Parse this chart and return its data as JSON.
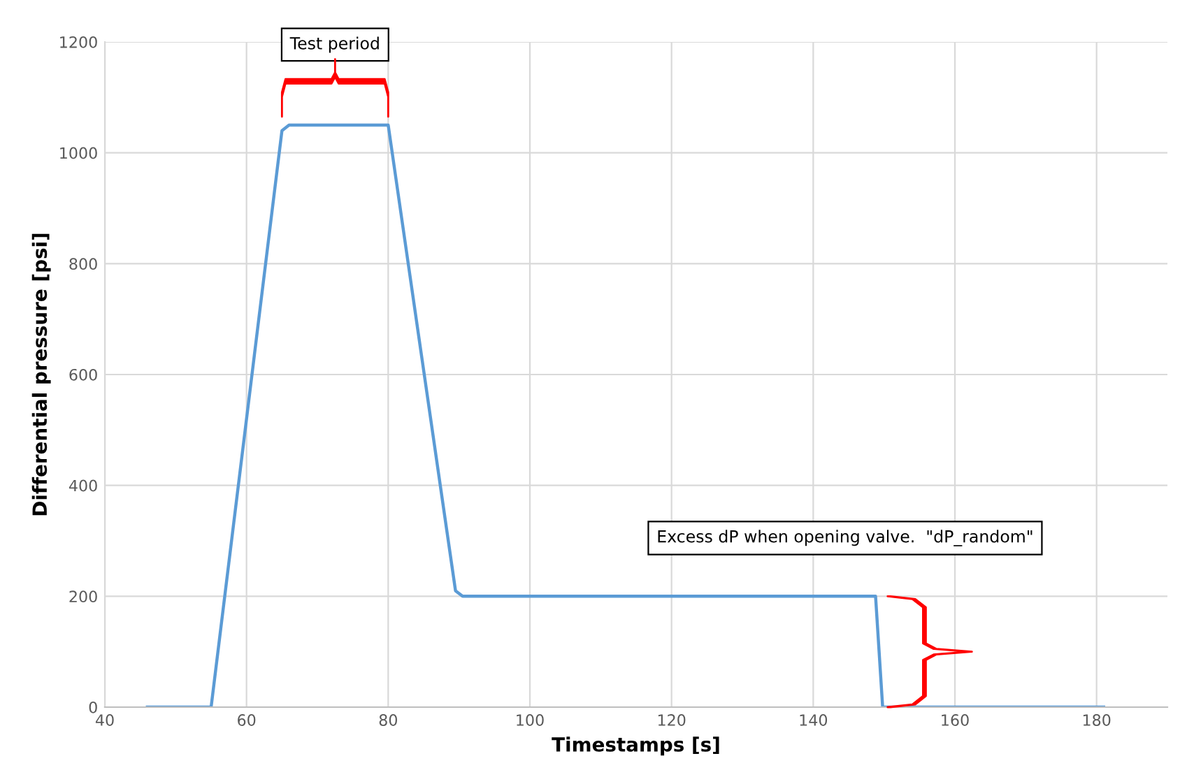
{
  "chart_data": {
    "type": "line",
    "xlabel": "Timestamps [s]",
    "ylabel": "Differential pressure [psi]",
    "x": [
      46,
      55,
      65,
      66,
      80,
      89.5,
      90.5,
      148.8,
      149.8,
      181
    ],
    "series": [
      {
        "color": "#5b9bd5",
        "values": [
          0,
          0,
          1040,
          1050,
          1050,
          210,
          200,
          200,
          0,
          0
        ]
      }
    ],
    "xlim": [
      40,
      190
    ],
    "xticks": [
      40,
      60,
      80,
      100,
      120,
      140,
      160,
      180
    ],
    "ylim": [
      0,
      1200
    ],
    "yticks": [
      0,
      200,
      400,
      600,
      800,
      1000,
      1200
    ],
    "grid": true,
    "marker": "none",
    "line_style": "solid",
    "annotations": [
      "Test period",
      "Excess dP when opening valve.  \"dP_random\""
    ]
  }
}
